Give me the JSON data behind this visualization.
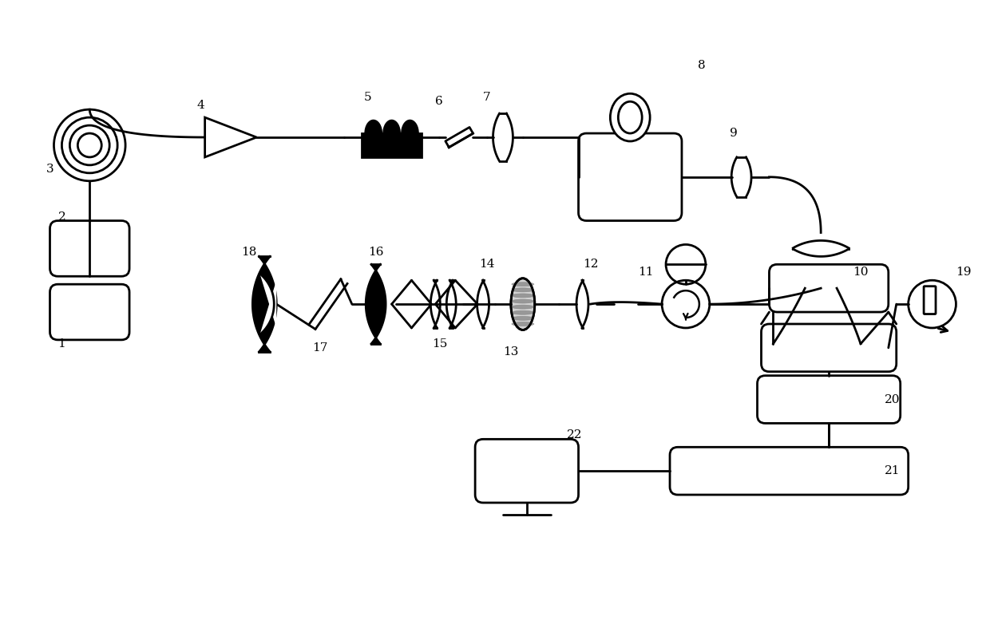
{
  "bg": "#ffffff",
  "lc": "#000000",
  "lw": 2.0,
  "fw": 12.4,
  "fh": 8.02,
  "xlim": [
    0,
    124
  ],
  "ylim": [
    0,
    80
  ]
}
